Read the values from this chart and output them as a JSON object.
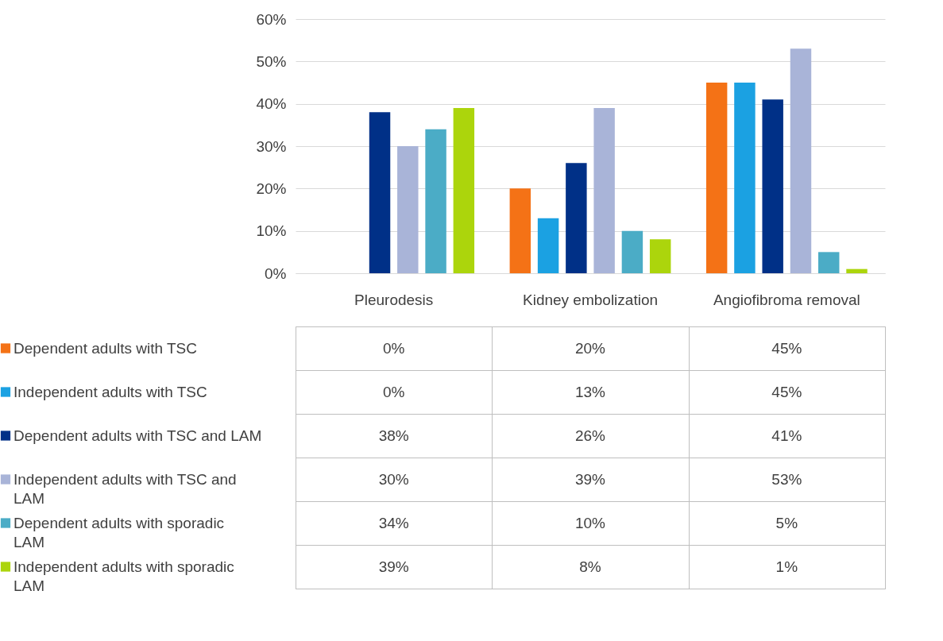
{
  "chart_data": {
    "type": "bar",
    "categories": [
      "Pleurodesis",
      "Kidney embolization",
      "Angiofibroma removal"
    ],
    "series": [
      {
        "name": "Dependent adults with TSC",
        "color": "#f47216",
        "values": [
          0,
          20,
          45
        ],
        "value_labels": [
          "0%",
          "20%",
          "45%"
        ]
      },
      {
        "name": "Independent adults with TSC",
        "color": "#1ba1e2",
        "values": [
          0,
          13,
          45
        ],
        "value_labels": [
          "0%",
          "13%",
          "45%"
        ]
      },
      {
        "name": "Dependent adults with TSC and LAM",
        "color": "#003087",
        "values": [
          38,
          26,
          41
        ],
        "value_labels": [
          "38%",
          "26%",
          "41%"
        ]
      },
      {
        "name": "Independent adults with TSC and LAM",
        "color": "#a9b4d8",
        "values": [
          30,
          39,
          53
        ],
        "value_labels": [
          "30%",
          "39%",
          "53%"
        ]
      },
      {
        "name": "Dependent adults with sporadic LAM",
        "color": "#4bacc6",
        "values": [
          34,
          10,
          5
        ],
        "value_labels": [
          "34%",
          "10%",
          "5%"
        ]
      },
      {
        "name": "Independent adults with sporadic LAM",
        "color": "#acd50c",
        "values": [
          39,
          8,
          1
        ],
        "value_labels": [
          "39%",
          "8%",
          "1%"
        ]
      }
    ],
    "ylim": [
      0,
      60
    ],
    "yticks": [
      {
        "value": 0,
        "label": "0%"
      },
      {
        "value": 10,
        "label": "10%"
      },
      {
        "value": 20,
        "label": "20%"
      },
      {
        "value": 30,
        "label": "30%"
      },
      {
        "value": 40,
        "label": "40%"
      },
      {
        "value": 50,
        "label": "50%"
      },
      {
        "value": 60,
        "label": "60%"
      }
    ],
    "grid": true,
    "legend": "bottom"
  }
}
